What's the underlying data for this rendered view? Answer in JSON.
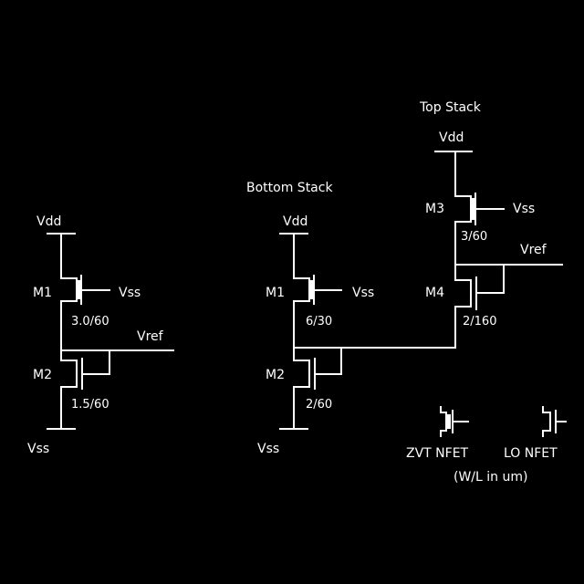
{
  "left": {
    "vdd": "Vdd",
    "vss_bottom": "Vss",
    "m1": {
      "name": "M1",
      "gate": "Vss",
      "size": "3.0/60"
    },
    "m2": {
      "name": "M2",
      "size": "1.5/60"
    },
    "vref": "Vref"
  },
  "bottom_stack": {
    "title": "Bottom Stack",
    "vdd": "Vdd",
    "vss_bottom": "Vss",
    "m1": {
      "name": "M1",
      "gate": "Vss",
      "size": "6/30"
    },
    "m2": {
      "name": "M2",
      "size": "2/60"
    }
  },
  "top_stack": {
    "title": "Top Stack",
    "vdd": "Vdd",
    "m3": {
      "name": "M3",
      "gate": "Vss",
      "size": "3/60"
    },
    "m4": {
      "name": "M4",
      "size": "2/160"
    },
    "vref": "Vref"
  },
  "legend": {
    "zvt": "ZVT NFET",
    "lo": "LO NFET",
    "units": "(W/L in um)"
  }
}
